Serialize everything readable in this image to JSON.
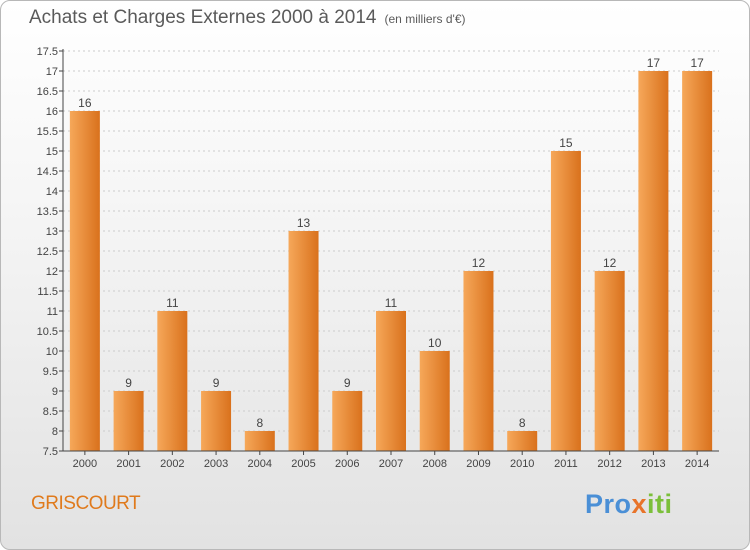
{
  "header": {
    "title": "Achats et Charges Externes 2000 à 2014",
    "unit": "(en milliers d'€)"
  },
  "location": "GRISCOURT",
  "brand": {
    "part1": "Pro",
    "part2": "x",
    "part3": "iti"
  },
  "colors": {
    "bar_light": "#f6a85a",
    "bar_dark": "#d9711c",
    "axis": "#444444",
    "grid": "#cccccc",
    "text": "#444444",
    "place": "#e07a1c"
  },
  "chart_data": {
    "type": "bar",
    "categories": [
      "2000",
      "2001",
      "2002",
      "2003",
      "2004",
      "2005",
      "2006",
      "2007",
      "2008",
      "2009",
      "2010",
      "2011",
      "2012",
      "2013",
      "2014"
    ],
    "values": [
      16,
      9,
      11,
      9,
      8,
      13,
      9,
      11,
      10,
      12,
      8,
      15,
      12,
      17,
      17
    ],
    "ylim": [
      7.5,
      17.5
    ],
    "yticks": [
      "7.5",
      "8",
      "8.5",
      "9",
      "9.5",
      "10",
      "10.5",
      "11",
      "11.5",
      "12",
      "12.5",
      "13",
      "13.5",
      "14",
      "14.5",
      "15",
      "15.5",
      "16",
      "16.5",
      "17",
      "17.5"
    ],
    "grid": true,
    "legend": "none"
  }
}
